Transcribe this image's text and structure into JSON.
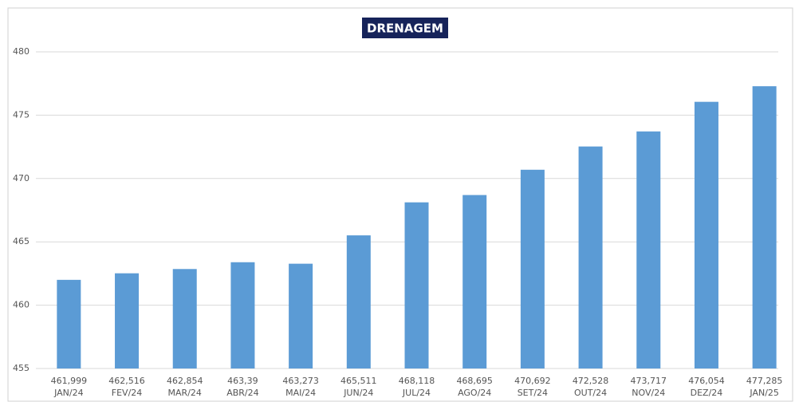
{
  "chart_data": {
    "type": "bar",
    "title": "DRENAGEM",
    "categories": [
      "JAN/24",
      "FEV/24",
      "MAR/24",
      "ABR/24",
      "MAI/24",
      "JUN/24",
      "JUL/24",
      "AGO/24",
      "SET/24",
      "OUT/24",
      "NOV/24",
      "DEZ/24",
      "JAN/25"
    ],
    "values": [
      461.999,
      462.516,
      462.854,
      463.39,
      463.273,
      465.511,
      468.118,
      468.695,
      470.692,
      472.528,
      473.717,
      476.054,
      477.285
    ],
    "value_labels": [
      "461,999",
      "462,516",
      "462,854",
      "463,39",
      "463,273",
      "465,511",
      "468,118",
      "468,695",
      "470,692",
      "472,528",
      "473,717",
      "476,054",
      "477,285"
    ],
    "color": "#5b9bd5",
    "ylim": [
      455,
      480
    ],
    "yticks": [
      455,
      460,
      465,
      470,
      475,
      480
    ],
    "grid": true
  }
}
